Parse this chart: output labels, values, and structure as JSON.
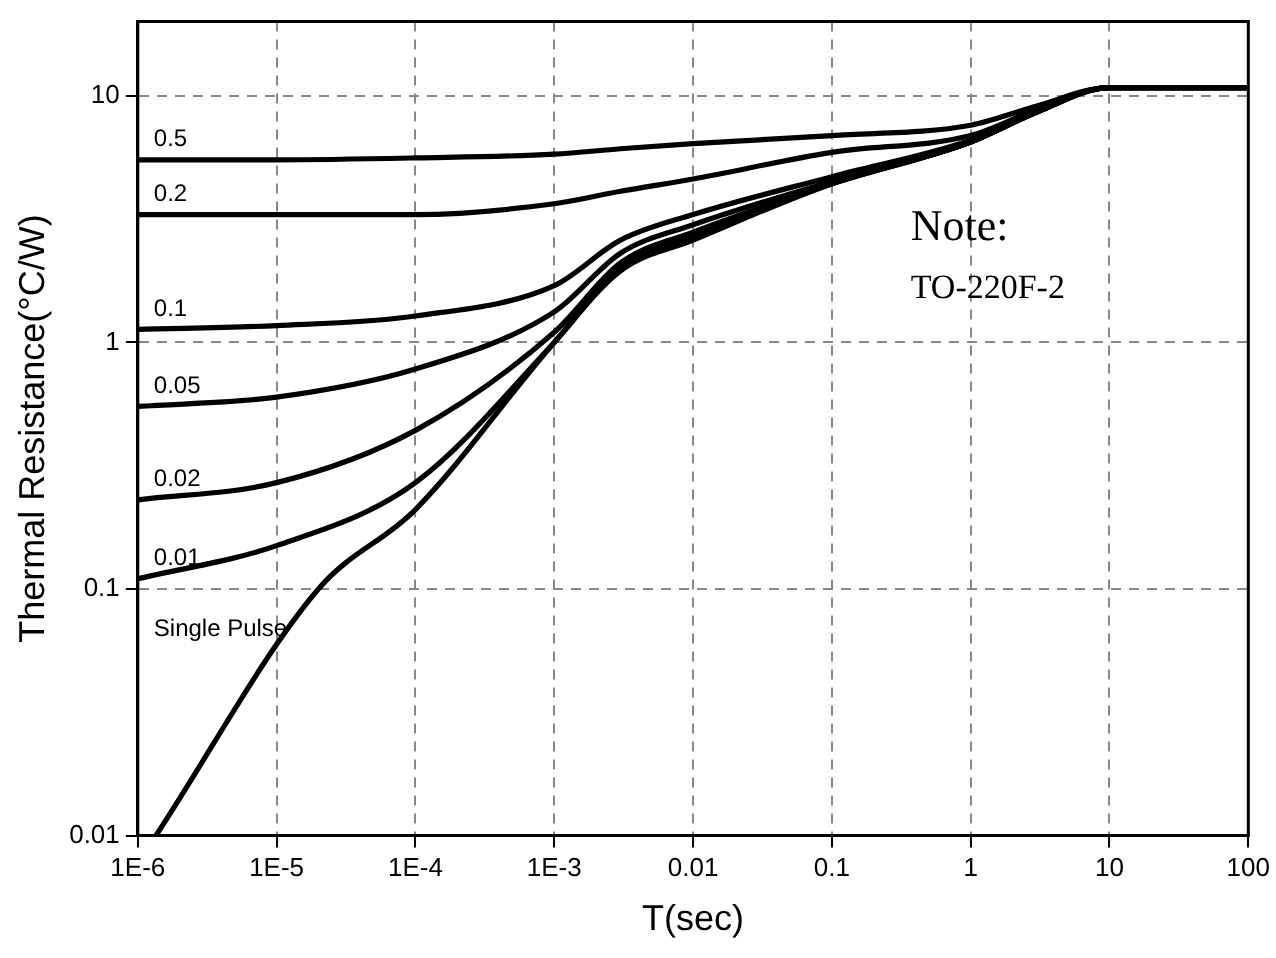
{
  "chart_data": {
    "type": "line",
    "xlabel": "T(sec)",
    "ylabel": "Thermal Resistance(°C/W)",
    "log": "xy",
    "x": [
      1e-06,
      1e-05,
      0.0001,
      0.001,
      0.003,
      0.01,
      0.1,
      1,
      3,
      10,
      100
    ],
    "xlim": [
      1e-06,
      100
    ],
    "ylim": [
      0.01,
      20
    ],
    "xticks": [
      {
        "value": 1e-06,
        "label": "1E-6"
      },
      {
        "value": 1e-05,
        "label": "1E-5"
      },
      {
        "value": 0.0001,
        "label": "1E-4"
      },
      {
        "value": 0.001,
        "label": "1E-3"
      },
      0.01,
      0.1,
      1,
      10,
      100
    ],
    "yticks": [
      0.01,
      0.1,
      1,
      10
    ],
    "grid": true,
    "line_style": "solid",
    "marker": "none",
    "legend": false,
    "series": [
      {
        "name": "0.5",
        "color": "#000000",
        "values": [
          5.5,
          5.5,
          5.6,
          5.8,
          6.1,
          6.4,
          6.9,
          7.6,
          9.1,
          10.8,
          10.8
        ]
      },
      {
        "name": "0.2",
        "color": "#000000",
        "values": [
          3.3,
          3.3,
          3.3,
          3.65,
          4.1,
          4.6,
          5.9,
          6.9,
          8.8,
          10.8,
          10.8
        ]
      },
      {
        "name": "0.1",
        "color": "#000000",
        "values": [
          1.13,
          1.17,
          1.28,
          1.7,
          2.6,
          3.3,
          4.7,
          6.6,
          8.6,
          10.8,
          10.8
        ]
      },
      {
        "name": "0.05",
        "color": "#000000",
        "values": [
          0.55,
          0.6,
          0.78,
          1.33,
          2.3,
          3.0,
          4.5,
          6.5,
          8.6,
          10.8,
          10.8
        ]
      },
      {
        "name": "0.02",
        "color": "#000000",
        "values": [
          0.23,
          0.27,
          0.44,
          1.1,
          2.1,
          2.8,
          4.4,
          6.5,
          8.6,
          10.8,
          10.8
        ]
      },
      {
        "name": "0.01",
        "color": "#000000",
        "values": [
          0.11,
          0.15,
          0.27,
          1.0,
          2.0,
          2.7,
          4.4,
          6.5,
          8.6,
          10.8,
          10.8
        ]
      },
      {
        "name": "Single Pulse",
        "color": "#000000",
        "x": [
          1.35e-06,
          2e-05,
          0.0001,
          0.001,
          0.003,
          0.01,
          0.1,
          1,
          3,
          10,
          100
        ],
        "values": [
          0.01,
          0.1,
          0.21,
          1.0,
          1.95,
          2.6,
          4.4,
          6.5,
          8.6,
          10.8,
          10.8
        ]
      }
    ],
    "annotations": [
      "Note:",
      "TO-220F-2"
    ]
  }
}
